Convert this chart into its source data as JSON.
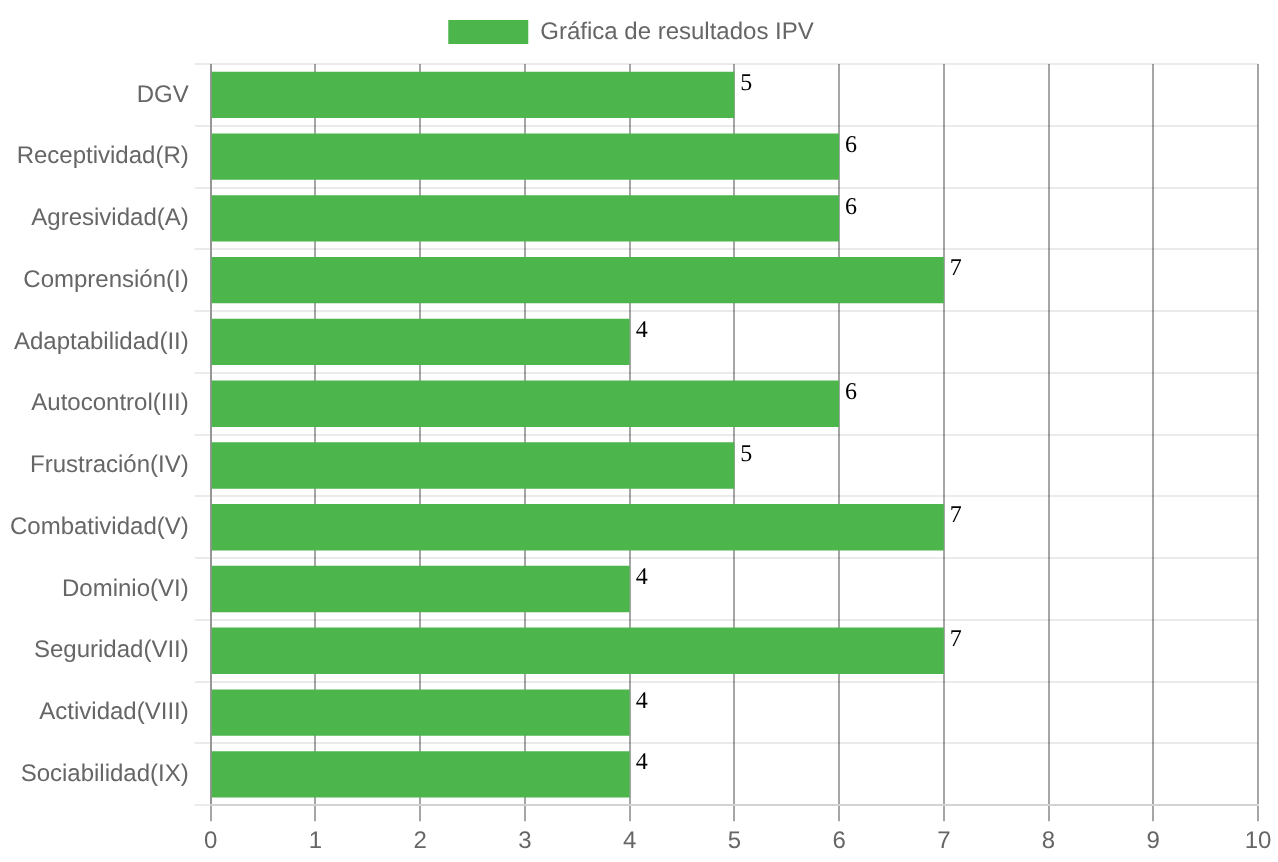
{
  "chart_data": {
    "type": "bar",
    "orientation": "horizontal",
    "categories": [
      "DGV",
      "Receptividad(R)",
      "Agresividad(A)",
      "Comprensión(I)",
      "Adaptabilidad(II)",
      "Autocontrol(III)",
      "Frustración(IV)",
      "Combatividad(V)",
      "Dominio(VI)",
      "Seguridad(VII)",
      "Actividad(VIII)",
      "Sociabilidad(IX)"
    ],
    "series": [
      {
        "name": "Gráfica de resultados IPV",
        "color": "#4cb54c",
        "values": [
          5,
          6,
          6,
          7,
          4,
          6,
          5,
          7,
          4,
          7,
          4,
          4
        ]
      }
    ],
    "xlim": [
      0,
      10
    ],
    "xticks": [
      0,
      1,
      2,
      3,
      4,
      5,
      6,
      7,
      8,
      9,
      10
    ],
    "grid": true,
    "legend": "top",
    "data_labels": true
  }
}
